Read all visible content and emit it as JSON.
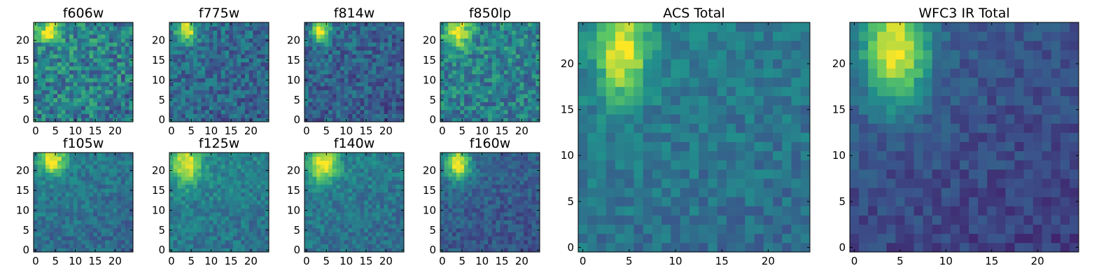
{
  "chart_data": {
    "type": "heatmap",
    "grid_size": [
      25,
      25
    ],
    "colormap": [
      "#440154",
      "#3b528b",
      "#21918c",
      "#5ec962",
      "#fde725"
    ],
    "panels": [
      {
        "id": "f606w",
        "title": "f606w",
        "seed": 606,
        "noise": 0.42,
        "base": 0.42,
        "blob_amp": 0.55,
        "blob_x": 3.8,
        "blob_y": 22.5,
        "sx": 2.0,
        "sy": 2.0,
        "gradient": 0.06,
        "xticks": [
          0,
          5,
          10,
          15,
          20
        ],
        "yticks": [
          0,
          5,
          10,
          15,
          20
        ]
      },
      {
        "id": "f775w",
        "title": "f775w",
        "seed": 775,
        "noise": 0.3,
        "base": 0.33,
        "blob_amp": 0.6,
        "blob_x": 3.8,
        "blob_y": 22.5,
        "sx": 1.8,
        "sy": 2.2,
        "gradient": 0.04,
        "xticks": [
          0,
          5,
          10,
          15,
          20
        ],
        "yticks": [
          0,
          5,
          10,
          15,
          20
        ]
      },
      {
        "id": "f814w",
        "title": "f814w",
        "seed": 814,
        "noise": 0.28,
        "base": 0.3,
        "blob_amp": 0.65,
        "blob_x": 3.6,
        "blob_y": 22.5,
        "sx": 1.5,
        "sy": 2.2,
        "gradient": 0.04,
        "xticks": [
          0,
          5,
          10,
          15,
          20
        ],
        "yticks": [
          0,
          5,
          10,
          15,
          20
        ]
      },
      {
        "id": "f850lp",
        "title": "f850lp",
        "seed": 850,
        "noise": 0.36,
        "base": 0.42,
        "blob_amp": 0.55,
        "blob_x": 3.8,
        "blob_y": 22.0,
        "sx": 2.2,
        "sy": 2.6,
        "gradient": 0.05,
        "xticks": [
          0,
          5,
          10,
          15,
          20
        ],
        "yticks": [
          0,
          5,
          10,
          15,
          20
        ]
      },
      {
        "id": "f105w",
        "title": "f105w",
        "seed": 105,
        "noise": 0.22,
        "base": 0.36,
        "blob_amp": 0.6,
        "blob_x": 4.2,
        "blob_y": 22.8,
        "sx": 2.2,
        "sy": 2.5,
        "gradient": 0.08,
        "xticks": [
          0,
          5,
          10,
          15,
          20
        ],
        "yticks": [
          0,
          5,
          10,
          15,
          20
        ]
      },
      {
        "id": "f125w",
        "title": "f125w",
        "seed": 125,
        "noise": 0.22,
        "base": 0.4,
        "blob_amp": 0.55,
        "blob_x": 4.0,
        "blob_y": 21.5,
        "sx": 2.4,
        "sy": 3.2,
        "gradient": 0.08,
        "xticks": [
          0,
          5,
          10,
          15,
          20
        ],
        "yticks": [
          0,
          5,
          10,
          15,
          20
        ]
      },
      {
        "id": "f140w",
        "title": "f140w",
        "seed": 140,
        "noise": 0.22,
        "base": 0.38,
        "blob_amp": 0.58,
        "blob_x": 4.2,
        "blob_y": 21.8,
        "sx": 2.4,
        "sy": 3.0,
        "gradient": 0.08,
        "xticks": [
          0,
          5,
          10,
          15,
          20
        ],
        "yticks": [
          0,
          5,
          10,
          15,
          20
        ]
      },
      {
        "id": "f160w",
        "title": "f160w",
        "seed": 160,
        "noise": 0.2,
        "base": 0.28,
        "blob_amp": 0.68,
        "blob_x": 4.0,
        "blob_y": 21.8,
        "sx": 2.1,
        "sy": 2.8,
        "gradient": 0.06,
        "xticks": [
          0,
          5,
          10,
          15,
          20
        ],
        "yticks": [
          0,
          5,
          10,
          15,
          20
        ]
      },
      {
        "id": "acs-total",
        "title": "ACS Total",
        "seed": 999,
        "noise": 0.2,
        "base": 0.38,
        "blob_amp": 0.58,
        "blob_x": 4.3,
        "blob_y": 21.5,
        "sx": 1.8,
        "sy": 3.5,
        "gradient": 0.06,
        "xticks": [
          0,
          5,
          10,
          15,
          20
        ],
        "yticks": [
          0,
          5,
          10,
          15,
          20
        ]
      },
      {
        "id": "wfc3-ir-total",
        "title": "WFC3 IR Total",
        "seed": 1234,
        "noise": 0.16,
        "base": 0.22,
        "blob_amp": 0.7,
        "blob_x": 4.5,
        "blob_y": 21.5,
        "sx": 2.4,
        "sy": 4.0,
        "gradient": 0.1,
        "xticks": [
          0,
          5,
          10,
          15,
          20
        ],
        "yticks": [
          0,
          5,
          10,
          15,
          20
        ]
      }
    ]
  }
}
